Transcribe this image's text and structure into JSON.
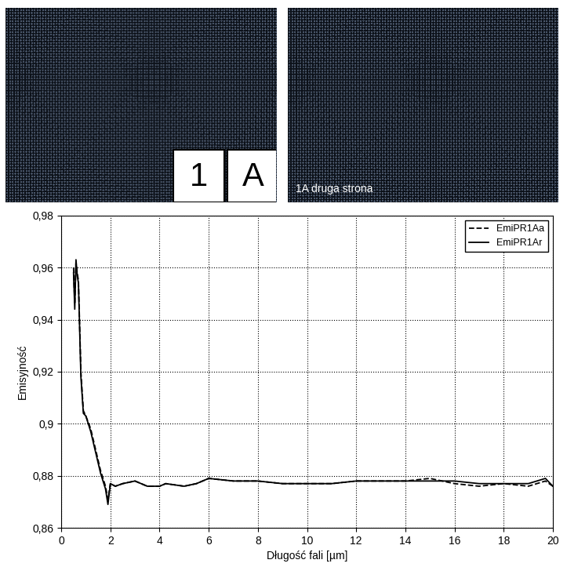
{
  "chart_data": {
    "type": "line",
    "x_label": "Długość fali [µm]",
    "y_label": "Emisyjność",
    "xlim": [
      0,
      20
    ],
    "ylim": [
      0.86,
      0.98
    ],
    "xticks": [
      0,
      2,
      4,
      6,
      8,
      10,
      12,
      14,
      16,
      18,
      20
    ],
    "yticks": [
      {
        "value": 0.86,
        "label": "0,86"
      },
      {
        "value": 0.88,
        "label": "0,88"
      },
      {
        "value": 0.9,
        "label": "0,9"
      },
      {
        "value": 0.92,
        "label": "0,92"
      },
      {
        "value": 0.94,
        "label": "0,94"
      },
      {
        "value": 0.96,
        "label": "0,96"
      },
      {
        "value": 0.98,
        "label": "0,98"
      }
    ],
    "grid": true,
    "legend": "upper right",
    "x": [
      0.5,
      0.55,
      0.6,
      0.65,
      0.7,
      0.8,
      0.9,
      1.0,
      1.2,
      1.4,
      1.6,
      1.8,
      1.9,
      2.0,
      2.2,
      2.5,
      3.0,
      3.5,
      4.0,
      4.25,
      5.0,
      5.5,
      6.0,
      7.0,
      8.0,
      9.0,
      10.0,
      11.0,
      12.0,
      13.0,
      14.0,
      15.0,
      16.0,
      17.0,
      18.0,
      19.0,
      19.7,
      20.0
    ],
    "series": [
      {
        "name": "EmiPR1Aa",
        "color": "#000000",
        "line_style": "dashed",
        "values": [
          0.96,
          0.946,
          0.962,
          0.958,
          0.955,
          0.92,
          0.905,
          0.903,
          0.898,
          0.89,
          0.882,
          0.876,
          0.871,
          0.877,
          0.876,
          0.877,
          0.878,
          0.876,
          0.876,
          0.877,
          0.876,
          0.877,
          0.879,
          0.878,
          0.878,
          0.877,
          0.877,
          0.877,
          0.878,
          0.878,
          0.878,
          0.879,
          0.877,
          0.876,
          0.877,
          0.876,
          0.878,
          0.876
        ]
      },
      {
        "name": "EmiPR1Ar",
        "color": "#000000",
        "line_style": "solid",
        "values": [
          0.958,
          0.944,
          0.963,
          0.957,
          0.954,
          0.918,
          0.904,
          0.903,
          0.897,
          0.889,
          0.881,
          0.875,
          0.869,
          0.877,
          0.876,
          0.877,
          0.878,
          0.876,
          0.876,
          0.877,
          0.876,
          0.877,
          0.879,
          0.878,
          0.878,
          0.877,
          0.877,
          0.877,
          0.878,
          0.878,
          0.878,
          0.878,
          0.878,
          0.877,
          0.877,
          0.877,
          0.879,
          0.876
        ]
      }
    ]
  },
  "photos": [
    {
      "labels": [
        "1",
        "A"
      ]
    },
    {
      "caption": "1A druga strona"
    }
  ]
}
